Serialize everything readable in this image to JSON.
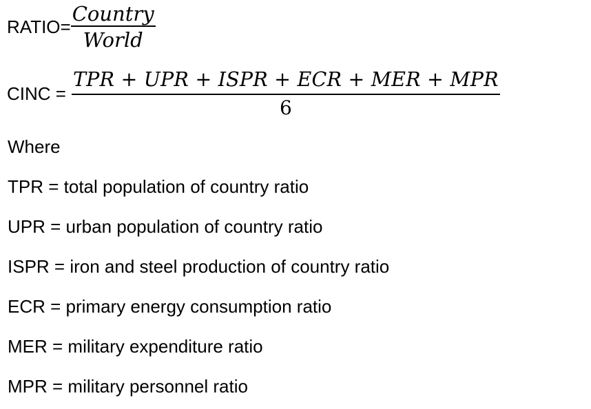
{
  "formulas": {
    "ratio": {
      "label": "RATIO=",
      "numerator": "Country",
      "denominator": "World"
    },
    "cinc": {
      "label": "CINC =",
      "numerator": "TPR + UPR + ISPR + ECR + MER + MPR",
      "denominator": "6"
    }
  },
  "where_label": "Where",
  "definitions": [
    "TPR = total population of country ratio",
    "UPR = urban population of country ratio",
    "ISPR = iron and steel production of country ratio",
    "ECR = primary energy consumption ratio",
    "MER = military expenditure ratio",
    "MPR = military personnel ratio"
  ]
}
